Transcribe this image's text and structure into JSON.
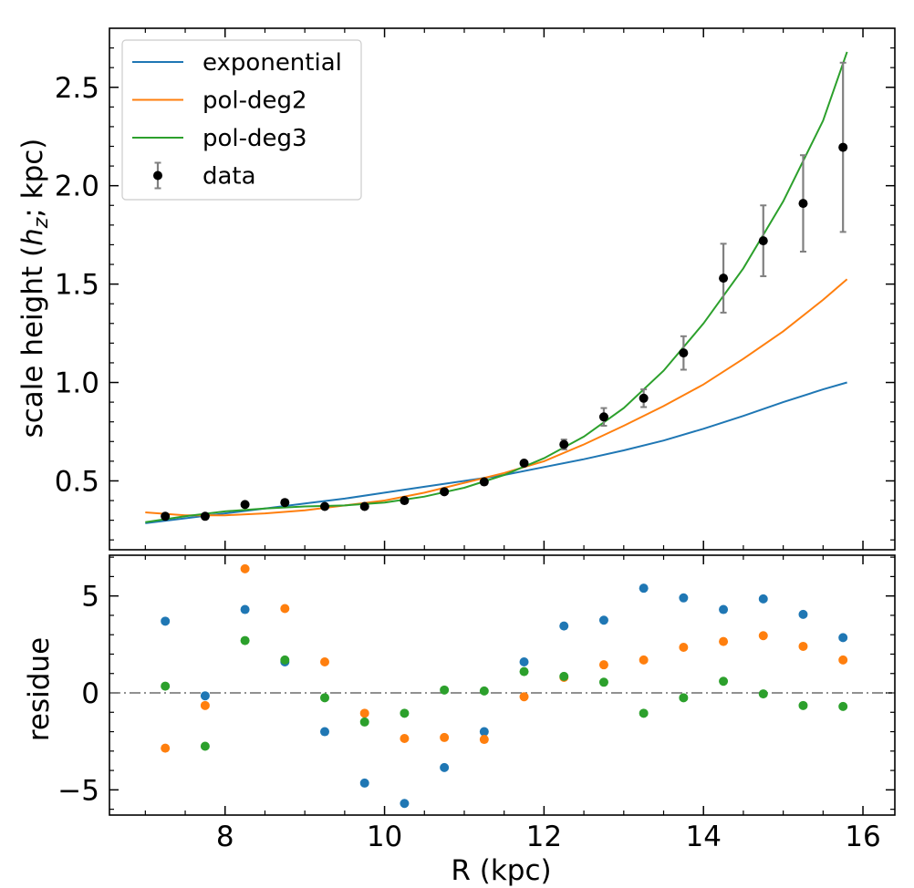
{
  "chart_data": [
    {
      "type": "line",
      "panel": "top",
      "xlabel": "",
      "ylabel_parts": [
        "scale height (",
        "h",
        "z",
        "; kpc)"
      ],
      "xlim": [
        6.55,
        16.4
      ],
      "ylim": [
        0.15,
        2.8
      ],
      "yticks": [
        0.5,
        1.0,
        1.5,
        2.0,
        2.5
      ],
      "ytick_labels": [
        "0.5",
        "1.0",
        "1.5",
        "2.0",
        "2.5"
      ],
      "xticks": [
        8,
        10,
        12,
        14,
        16
      ],
      "series": [
        {
          "name": "exponential",
          "kind": "line",
          "color": "#1f77b4",
          "x": [
            7.0,
            7.5,
            8.0,
            8.5,
            9.0,
            9.5,
            10.0,
            10.5,
            11.0,
            11.5,
            12.0,
            12.5,
            13.0,
            13.5,
            14.0,
            14.5,
            15.0,
            15.5,
            15.8
          ],
          "y": [
            0.285,
            0.31,
            0.335,
            0.36,
            0.385,
            0.41,
            0.44,
            0.47,
            0.5,
            0.53,
            0.57,
            0.61,
            0.655,
            0.705,
            0.765,
            0.83,
            0.9,
            0.965,
            1.0
          ]
        },
        {
          "name": "pol-deg2",
          "kind": "line",
          "color": "#ff7f0e",
          "x": [
            7.0,
            7.5,
            8.0,
            8.5,
            9.0,
            9.5,
            10.0,
            10.5,
            11.0,
            11.5,
            12.0,
            12.5,
            13.0,
            13.5,
            14.0,
            14.5,
            15.0,
            15.5,
            15.8
          ],
          "y": [
            0.34,
            0.325,
            0.325,
            0.335,
            0.35,
            0.375,
            0.4,
            0.44,
            0.49,
            0.54,
            0.6,
            0.685,
            0.78,
            0.88,
            0.99,
            1.12,
            1.26,
            1.42,
            1.525
          ]
        },
        {
          "name": "pol-deg3",
          "kind": "line",
          "color": "#2ca02c",
          "x": [
            7.0,
            7.5,
            8.0,
            8.5,
            9.0,
            9.5,
            10.0,
            10.5,
            11.0,
            11.5,
            12.0,
            12.5,
            13.0,
            13.5,
            14.0,
            14.5,
            15.0,
            15.5,
            15.8
          ],
          "y": [
            0.29,
            0.32,
            0.345,
            0.36,
            0.37,
            0.375,
            0.39,
            0.42,
            0.465,
            0.53,
            0.615,
            0.725,
            0.87,
            1.06,
            1.3,
            1.58,
            1.92,
            2.33,
            2.68
          ]
        },
        {
          "name": "data",
          "kind": "errorbar",
          "color": "#000000",
          "ecolor": "#808080",
          "x": [
            7.25,
            7.75,
            8.25,
            8.75,
            9.25,
            9.75,
            10.25,
            10.75,
            11.25,
            11.75,
            12.25,
            12.75,
            13.25,
            13.75,
            14.25,
            14.75,
            15.25,
            15.75
          ],
          "y": [
            0.32,
            0.32,
            0.38,
            0.39,
            0.37,
            0.37,
            0.4,
            0.445,
            0.495,
            0.59,
            0.685,
            0.825,
            0.92,
            1.15,
            1.53,
            1.72,
            1.91,
            2.195
          ],
          "yerr": [
            0.01,
            0.01,
            0.01,
            0.01,
            0.01,
            0.01,
            0.01,
            0.01,
            0.01,
            0.01,
            0.025,
            0.045,
            0.045,
            0.085,
            0.175,
            0.18,
            0.245,
            0.43
          ]
        }
      ],
      "legend": {
        "loc": "upper-left",
        "entries": [
          "exponential",
          "pol-deg2",
          "pol-deg3",
          "data"
        ]
      }
    },
    {
      "type": "scatter",
      "panel": "bottom",
      "xlabel": "R (kpc)",
      "ylabel": "residue",
      "xlim": [
        6.55,
        16.4
      ],
      "ylim": [
        -6.3,
        7.1
      ],
      "xticks": [
        8,
        10,
        12,
        14,
        16
      ],
      "xtick_labels": [
        "8",
        "10",
        "12",
        "14",
        "16"
      ],
      "yticks": [
        -5,
        0,
        5
      ],
      "ytick_labels": [
        "−5",
        "0",
        "5"
      ],
      "hline": {
        "y": 0,
        "style": "dashdot",
        "color": "#808080"
      },
      "x": [
        7.25,
        7.75,
        8.25,
        8.75,
        9.25,
        9.75,
        10.25,
        10.75,
        11.25,
        11.75,
        12.25,
        12.75,
        13.25,
        13.75,
        14.25,
        14.75,
        15.25,
        15.75
      ],
      "series": [
        {
          "name": "exponential",
          "color": "#1f77b4",
          "values": [
            3.7,
            -0.15,
            4.3,
            1.6,
            -2.0,
            -4.65,
            -5.7,
            -3.85,
            -2.0,
            1.6,
            3.45,
            3.75,
            5.4,
            4.9,
            4.3,
            4.85,
            4.05,
            2.85
          ]
        },
        {
          "name": "pol-deg2",
          "color": "#ff7f0e",
          "values": [
            -2.85,
            -0.65,
            6.4,
            4.35,
            1.6,
            -1.05,
            -2.35,
            -2.3,
            -2.4,
            -0.2,
            0.8,
            1.45,
            1.7,
            2.35,
            2.65,
            2.95,
            2.4,
            1.7
          ]
        },
        {
          "name": "pol-deg3",
          "color": "#2ca02c",
          "values": [
            0.35,
            -2.75,
            2.7,
            1.7,
            -0.25,
            -1.5,
            -1.05,
            0.15,
            0.1,
            1.1,
            0.85,
            0.55,
            -1.05,
            -0.25,
            0.6,
            -0.05,
            -0.65,
            -0.7
          ]
        }
      ]
    }
  ]
}
